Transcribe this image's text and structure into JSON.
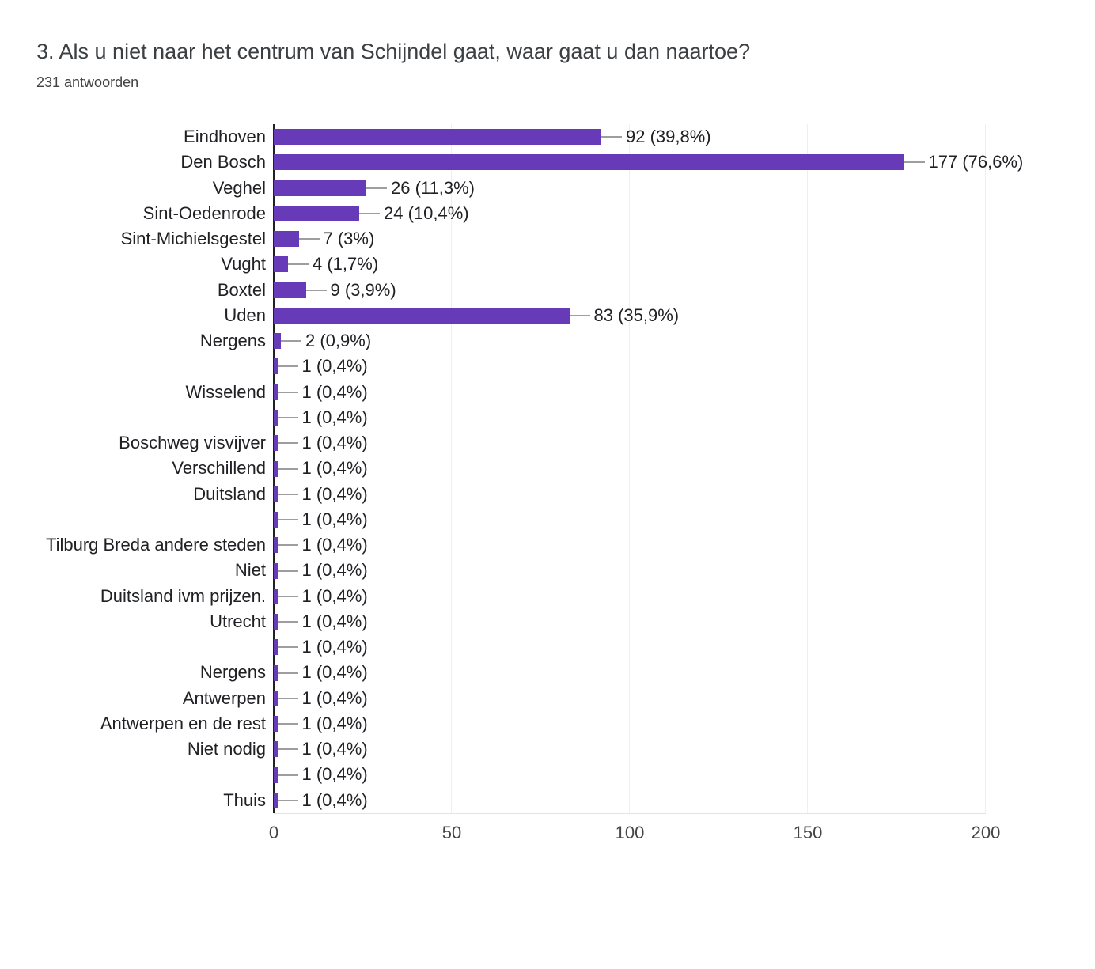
{
  "header": {
    "title": "3. Als u niet naar het centrum van Schijndel gaat, waar gaat u dan naartoe?",
    "subtitle": "231 antwoorden"
  },
  "colors": {
    "bar": "#673AB7",
    "axis_line": "#212121",
    "gridline": "#efefef",
    "connector": "#9e9e9e",
    "category_text": "#202124",
    "value_text": "#202124",
    "tick_text": "#444444",
    "title_text": "#3c4043"
  },
  "chart_data": {
    "type": "bar",
    "orientation": "horizontal",
    "title": "3. Als u niet naar het centrum van Schijndel gaat, waar gaat u dan naartoe?",
    "subtitle": "231 antwoorden",
    "categories": [
      "Eindhoven",
      "Den Bosch",
      "Veghel",
      "Sint-Oedenrode",
      "Sint-Michielsgestel",
      "Vught",
      "Boxtel",
      "Uden",
      "Nergens",
      "",
      "Wisselend",
      "",
      "Boschweg visvijver",
      "Verschillend",
      "Duitsland",
      "",
      "Tilburg Breda andere steden",
      "Niet",
      "Duitsland ivm prijzen.",
      "Utrecht",
      "",
      "Nergens",
      "Antwerpen",
      "Antwerpen en de rest",
      "Niet nodig",
      "",
      "Thuis"
    ],
    "values": [
      92,
      177,
      26,
      24,
      7,
      4,
      9,
      83,
      2,
      1,
      1,
      1,
      1,
      1,
      1,
      1,
      1,
      1,
      1,
      1,
      1,
      1,
      1,
      1,
      1,
      1,
      1
    ],
    "value_labels": [
      "92 (39,8%)",
      "177 (76,6%)",
      "26 (11,3%)",
      "24 (10,4%)",
      "7 (3%)",
      "4 (1,7%)",
      "9 (3,9%)",
      "83 (35,9%)",
      "2 (0,9%)",
      "1 (0,4%)",
      "1 (0,4%)",
      "1 (0,4%)",
      "1 (0,4%)",
      "1 (0,4%)",
      "1 (0,4%)",
      "1 (0,4%)",
      "1 (0,4%)",
      "1 (0,4%)",
      "1 (0,4%)",
      "1 (0,4%)",
      "1 (0,4%)",
      "1 (0,4%)",
      "1 (0,4%)",
      "1 (0,4%)",
      "1 (0,4%)",
      "1 (0,4%)",
      "1 (0,4%)"
    ],
    "xlabel": "",
    "ylabel": "",
    "x_ticks": [
      0,
      50,
      100,
      150,
      200
    ],
    "xlim": [
      0,
      200
    ],
    "grid": true,
    "legend": "none"
  }
}
